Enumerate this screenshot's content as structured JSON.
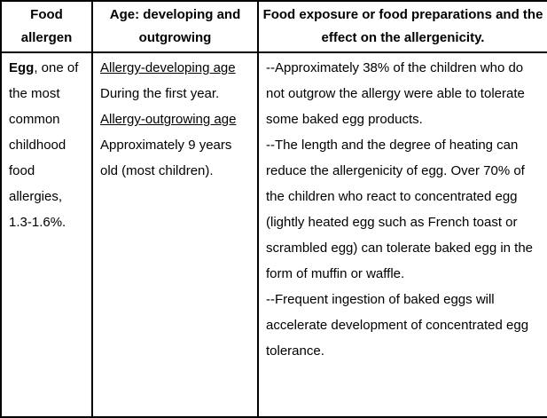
{
  "table": {
    "header": {
      "col1": "Food allergen",
      "col2": "Age: developing and outgrowing",
      "col3": "Food exposure or food preparations and the effect on the allergenicity."
    },
    "row": {
      "allergen": {
        "name": "Egg",
        "description": ", one of the most common childhood food allergies, 1.3-1.6%."
      },
      "age": {
        "developing_label": "Allergy-developing age",
        "developing_text": "During the first year.",
        "outgrowing_label": "Allergy-outgrowing age",
        "outgrowing_text": "Approximately 9 years old (most children)."
      },
      "exposure": {
        "paragraphs": [
          "--Approximately 38% of the children who do not outgrow the allergy were able to tolerate some baked egg products.",
          "--The length and the degree of heating can reduce the allergenicity of egg. Over 70% of the children who react to concentrated egg (lightly heated egg such as French toast or scrambled egg) can tolerate baked egg in the form of muffin or waffle.",
          "--Frequent ingestion of baked eggs will accelerate development of concentrated egg tolerance."
        ]
      }
    },
    "colors": {
      "border": "#000000",
      "text": "#000000",
      "background": "#ffffff"
    }
  }
}
